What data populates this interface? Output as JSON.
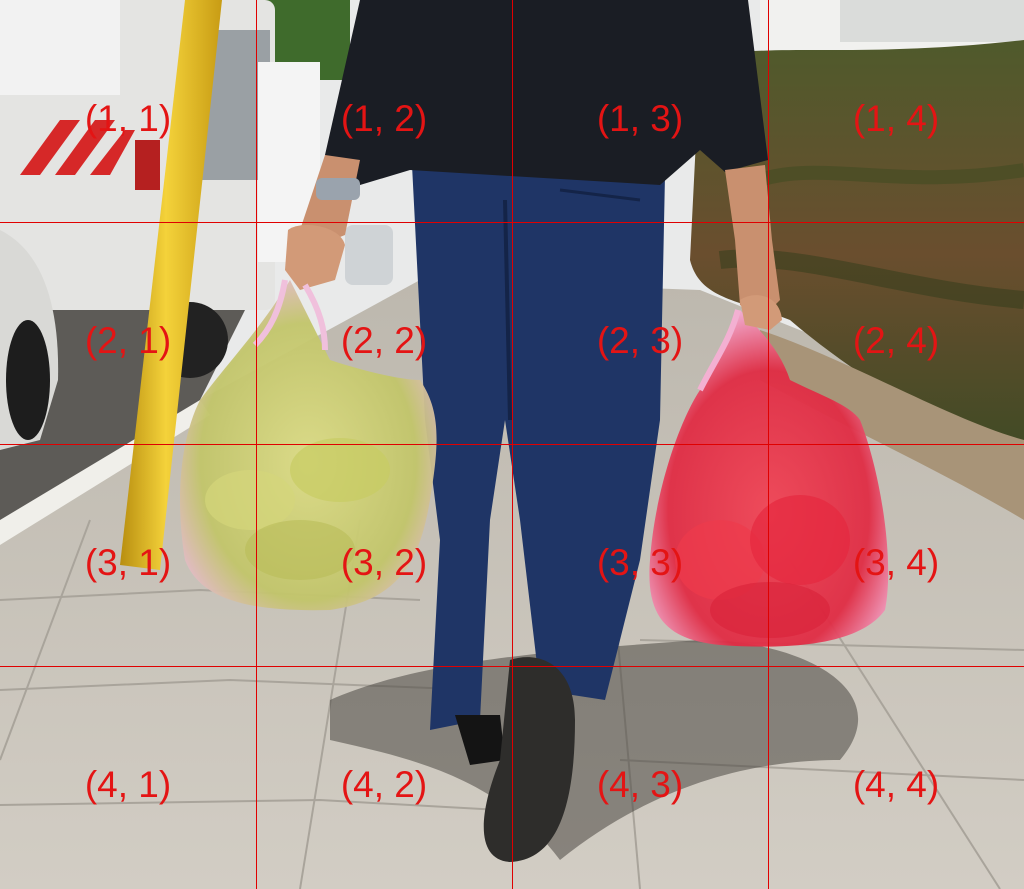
{
  "grid": {
    "rows": 4,
    "cols": 4,
    "line_color": "#e00000",
    "label_color": "#e41414",
    "labels": [
      [
        "(1, 1)",
        "(1, 2)",
        "(1, 3)",
        "(1, 4)"
      ],
      [
        "(2, 1)",
        "(2, 2)",
        "(2, 3)",
        "(2, 4)"
      ],
      [
        "(3, 1)",
        "(3, 2)",
        "(3, 3)",
        "(3, 4)"
      ],
      [
        "(4, 1)",
        "(4, 2)",
        "(4, 3)",
        "(4, 4)"
      ]
    ]
  },
  "photo": {
    "colors": {
      "sidewalk": "#c9c4bc",
      "van": "#e4e4e2",
      "pole": "#e8c020",
      "sweater": "#1a1d24",
      "trousers": "#1f3566",
      "hedge": "#4a5a2a",
      "bag_left_contents": "#c9c86a",
      "bag_right_contents": "#e4354a",
      "bag_film": "#f2b8d8"
    }
  }
}
